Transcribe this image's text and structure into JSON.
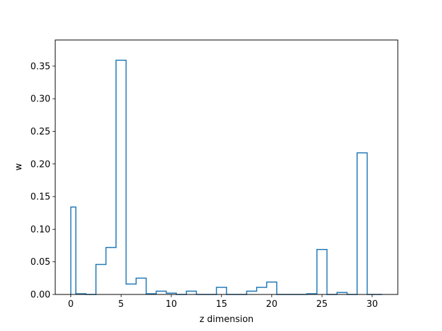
{
  "chart_data": {
    "type": "line",
    "style": "step-histogram",
    "title": "",
    "xlabel": "z dimension",
    "ylabel": "w",
    "xlim": [
      -1.55,
      32.55
    ],
    "ylim": [
      0,
      0.39
    ],
    "xticks": [
      0,
      5,
      10,
      15,
      20,
      25,
      30
    ],
    "yticks": [
      0.0,
      0.05,
      0.1,
      0.15,
      0.2,
      0.25,
      0.3,
      0.35
    ],
    "ytick_labels": [
      "0.00",
      "0.05",
      "0.10",
      "0.15",
      "0.20",
      "0.25",
      "0.30",
      "0.35"
    ],
    "grid": false,
    "color": "#1f77b4",
    "bin_edges": [
      0,
      0.5,
      1.5,
      2.5,
      3.5,
      4.5,
      5.5,
      6.5,
      7.5,
      8.5,
      9.5,
      10.5,
      11.5,
      12.5,
      13.5,
      14.5,
      15.5,
      16.5,
      17.5,
      18.5,
      19.5,
      20.5,
      21.5,
      22.5,
      23.5,
      24.5,
      25.5,
      26.5,
      27.5,
      28.5,
      29.5,
      30.5,
      31
    ],
    "values": [
      0.134,
      0.001,
      0.0,
      0.046,
      0.072,
      0.359,
      0.016,
      0.025,
      0.001,
      0.005,
      0.002,
      0.0,
      0.005,
      0.0,
      0.0,
      0.011,
      0.0,
      0.0,
      0.005,
      0.011,
      0.019,
      0.0,
      0.0,
      0.0,
      0.001,
      0.069,
      0.0,
      0.003,
      0.0,
      0.217,
      0.0,
      0.0
    ]
  }
}
